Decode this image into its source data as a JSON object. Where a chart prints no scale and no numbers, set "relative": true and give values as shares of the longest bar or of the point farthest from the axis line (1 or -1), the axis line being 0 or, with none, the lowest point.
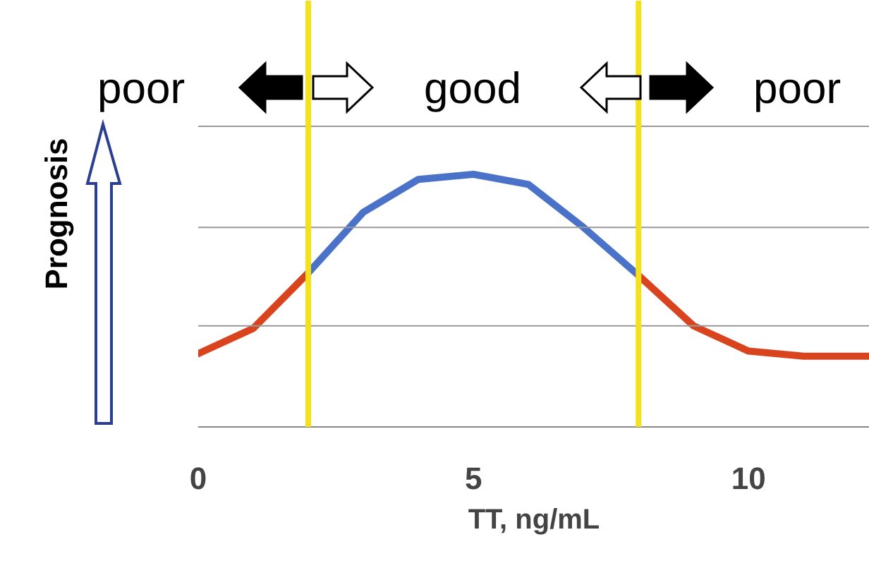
{
  "chart_data": {
    "type": "line",
    "relative": true,
    "xlabel": "TT, ng/mL",
    "ylabel": "Prognosis",
    "xlim": [
      0,
      12.2
    ],
    "xticks": [
      0,
      5,
      10
    ],
    "marker": "none",
    "line_style": "solid",
    "series": [
      {
        "color": "#d9441f",
        "x": [
          0,
          1,
          2
        ],
        "values": [
          0.29,
          0.39,
          0.61
        ]
      },
      {
        "color": "#4a72c8",
        "x": [
          2,
          3,
          4,
          5,
          6,
          7,
          8
        ],
        "values": [
          0.61,
          0.85,
          0.98,
          1,
          0.96,
          0.79,
          0.6
        ]
      },
      {
        "color": "#d9441f",
        "x": [
          8,
          9,
          10,
          11,
          12.2
        ],
        "values": [
          0.6,
          0.4,
          0.3,
          0.28,
          0.28
        ]
      }
    ],
    "ref_lines": [
      {
        "axis": "y",
        "value": 0.4,
        "color": "#999999"
      },
      {
        "axis": "y",
        "value": 0.79,
        "color": "#999999"
      },
      {
        "axis": "y",
        "value": 1.19,
        "color": "#999999"
      },
      {
        "axis": "x",
        "value": 2,
        "color": "#f5e11a"
      },
      {
        "axis": "x",
        "value": 8,
        "color": "#f5e11a"
      }
    ],
    "annotations": [
      "poor",
      "good",
      "poor"
    ]
  }
}
